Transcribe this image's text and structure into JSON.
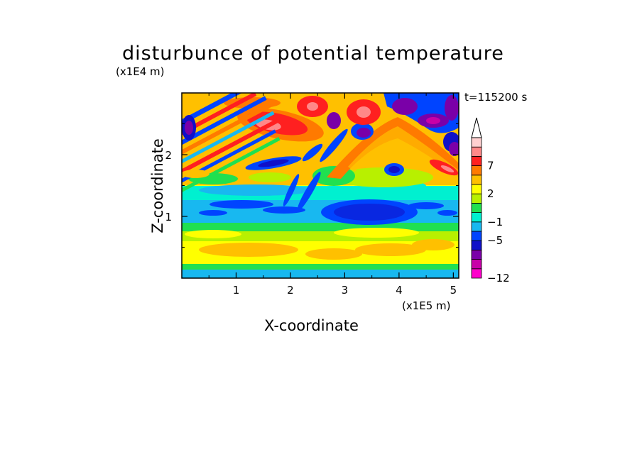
{
  "chart_data": {
    "type": "heatmap",
    "title": "disturbunce of potential temperature",
    "xlabel": "X-coordinate",
    "ylabel": "Z-coordinate",
    "x_unit_label": "(x1E5 m)",
    "y_unit_label": "(x1E4 m)",
    "time_label": "t=115200 s",
    "xlim": [
      0,
      5.1
    ],
    "ylim": [
      0,
      3.0
    ],
    "x_ticks": [
      1,
      2,
      3,
      4,
      5
    ],
    "y_ticks": [
      1,
      2
    ],
    "colorbar": {
      "levels": [
        -12,
        -11,
        -9,
        -7,
        -5,
        -3,
        -1,
        0,
        1,
        2,
        3,
        5,
        7,
        9,
        11
      ],
      "colors": [
        "#ff00cc",
        "#c800a8",
        "#7a00a8",
        "#1010c8",
        "#0044ff",
        "#18b8f0",
        "#00f0d0",
        "#20e050",
        "#b8f000",
        "#ffff00",
        "#ffc000",
        "#ff7a00",
        "#ff2020",
        "#ff8888",
        "#ffd0d0"
      ],
      "tick_labels": [
        "-12",
        "-5",
        "-1",
        "2",
        "7"
      ],
      "tick_values": [
        -12,
        -5,
        -1,
        2,
        7
      ],
      "extend": "max",
      "extend_color": "#ffffff"
    },
    "field_features": [
      {
        "region": "upper-left",
        "desc": "bands of warm (red/orange) and cold (blue/purple) anomalies tilted up-left"
      },
      {
        "region": "x~1.5, z~2.5",
        "value_approx": 9
      },
      {
        "region": "x~3.3, z~2.7",
        "value_approx": 9
      },
      {
        "region": "x~3.5, z~1.1",
        "value_approx": -5
      },
      {
        "region": "x~5.0, z~1.8",
        "value_approx": 7
      },
      {
        "region": "z~1.0 band",
        "value_approx": -1
      },
      {
        "region": "z~0.4 band",
        "value_approx": 2
      }
    ]
  }
}
